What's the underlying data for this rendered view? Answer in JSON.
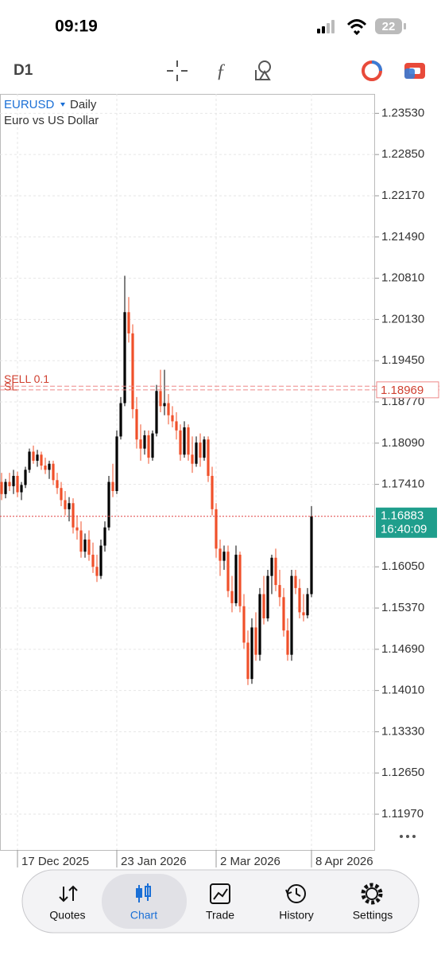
{
  "status_bar": {
    "time": "09:19",
    "battery": "22"
  },
  "toolbar": {
    "timeframe": "D1"
  },
  "nav": {
    "items": [
      "Quotes",
      "Chart",
      "Trade",
      "History",
      "Settings"
    ],
    "selected": 1
  },
  "chart_data": {
    "type": "candlestick",
    "symbol": "EURUSD",
    "period": "Daily",
    "description": "Euro vs US Dollar",
    "bull_color": "#000000",
    "bear_color": "#f0502a",
    "ylim": [
      1.1138,
      1.2385
    ],
    "yticks": [
      {
        "value": 1.2353,
        "label": "1.23530"
      },
      {
        "value": 1.2285,
        "label": "1.22850"
      },
      {
        "value": 1.2217,
        "label": "1.22170"
      },
      {
        "value": 1.2149,
        "label": "1.21490"
      },
      {
        "value": 1.2081,
        "label": "1.20810"
      },
      {
        "value": 1.2013,
        "label": "1.20130"
      },
      {
        "value": 1.1945,
        "label": "1.19450"
      },
      {
        "value": 1.1877,
        "label": "1.18770"
      },
      {
        "value": 1.1809,
        "label": "1.18090"
      },
      {
        "value": 1.1741,
        "label": "1.17410"
      },
      {
        "value": 1.1605,
        "label": "1.16050"
      },
      {
        "value": 1.1537,
        "label": "1.15370"
      },
      {
        "value": 1.1469,
        "label": "1.14690"
      },
      {
        "value": 1.1401,
        "label": "1.14010"
      },
      {
        "value": 1.1333,
        "label": "1.13330"
      },
      {
        "value": 1.1265,
        "label": "1.12650"
      },
      {
        "value": 1.1197,
        "label": "1.11970"
      }
    ],
    "grid": true,
    "categories": [
      null,
      null,
      null,
      null,
      "17 Dec 2025",
      null,
      null,
      null,
      null,
      null,
      null,
      null,
      null,
      null,
      null,
      null,
      null,
      null,
      null,
      null,
      null,
      null,
      null,
      null,
      null,
      null,
      null,
      null,
      null,
      "23 Jan 2026",
      null,
      null,
      null,
      null,
      null,
      null,
      null,
      null,
      null,
      null,
      null,
      null,
      null,
      null,
      null,
      null,
      null,
      null,
      null,
      null,
      null,
      null,
      null,
      null,
      "2 Mar 2026",
      null,
      null,
      null,
      null,
      null,
      null,
      null,
      null,
      null,
      null,
      null,
      null,
      null,
      null,
      null,
      null,
      null,
      null,
      null,
      null,
      null,
      null,
      null,
      "8 Apr 2026"
    ],
    "ohlc": [
      [
        1.1745,
        1.176,
        1.1715,
        1.1725
      ],
      [
        1.1725,
        1.175,
        1.1718,
        1.1745
      ],
      [
        1.1745,
        1.176,
        1.173,
        1.1738
      ],
      [
        1.1738,
        1.1765,
        1.1725,
        1.1755
      ],
      [
        1.1755,
        1.1762,
        1.172,
        1.1728
      ],
      [
        1.1728,
        1.1745,
        1.1715,
        1.174
      ],
      [
        1.174,
        1.177,
        1.1735,
        1.1765
      ],
      [
        1.1765,
        1.18,
        1.176,
        1.1795
      ],
      [
        1.1795,
        1.1805,
        1.1775,
        1.178
      ],
      [
        1.178,
        1.1798,
        1.177,
        1.179
      ],
      [
        1.179,
        1.1795,
        1.1765,
        1.1772
      ],
      [
        1.1772,
        1.1785,
        1.1758,
        1.1765
      ],
      [
        1.1765,
        1.178,
        1.175,
        1.1775
      ],
      [
        1.1775,
        1.178,
        1.174,
        1.1748
      ],
      [
        1.1748,
        1.176,
        1.1725,
        1.1735
      ],
      [
        1.1735,
        1.1745,
        1.1705,
        1.1715
      ],
      [
        1.1715,
        1.173,
        1.169,
        1.17
      ],
      [
        1.17,
        1.172,
        1.168,
        1.171
      ],
      [
        1.171,
        1.1718,
        1.166,
        1.167
      ],
      [
        1.167,
        1.169,
        1.165,
        1.1665
      ],
      [
        1.1665,
        1.168,
        1.162,
        1.163
      ],
      [
        1.163,
        1.166,
        1.162,
        1.165
      ],
      [
        1.165,
        1.1665,
        1.1615,
        1.1625
      ],
      [
        1.1625,
        1.1645,
        1.1595,
        1.1605
      ],
      [
        1.1605,
        1.1625,
        1.158,
        1.159
      ],
      [
        1.159,
        1.165,
        1.1585,
        1.164
      ],
      [
        1.164,
        1.168,
        1.163,
        1.167
      ],
      [
        1.167,
        1.1755,
        1.1665,
        1.1745
      ],
      [
        1.1745,
        1.1775,
        1.172,
        1.173
      ],
      [
        1.173,
        1.183,
        1.1725,
        1.182
      ],
      [
        1.182,
        1.1885,
        1.1815,
        1.1875
      ],
      [
        1.1875,
        1.2085,
        1.187,
        1.2025
      ],
      [
        1.2025,
        1.205,
        1.1975,
        1.199
      ],
      [
        1.199,
        1.2005,
        1.185,
        1.1865
      ],
      [
        1.1865,
        1.1885,
        1.18,
        1.1815
      ],
      [
        1.1815,
        1.184,
        1.178,
        1.18
      ],
      [
        1.18,
        1.183,
        1.179,
        1.1822
      ],
      [
        1.1822,
        1.183,
        1.1775,
        1.1785
      ],
      [
        1.1785,
        1.183,
        1.178,
        1.1825
      ],
      [
        1.1825,
        1.1905,
        1.182,
        1.1895
      ],
      [
        1.1895,
        1.193,
        1.186,
        1.187
      ],
      [
        1.187,
        1.193,
        1.1855,
        1.1875
      ],
      [
        1.1875,
        1.189,
        1.184,
        1.1855
      ],
      [
        1.1855,
        1.187,
        1.1835,
        1.1845
      ],
      [
        1.1845,
        1.186,
        1.1815,
        1.183
      ],
      [
        1.183,
        1.184,
        1.178,
        1.179
      ],
      [
        1.179,
        1.1845,
        1.1785,
        1.1835
      ],
      [
        1.1835,
        1.184,
        1.178,
        1.179
      ],
      [
        1.179,
        1.182,
        1.176,
        1.1775
      ],
      [
        1.1775,
        1.182,
        1.177,
        1.181
      ],
      [
        1.181,
        1.1825,
        1.177,
        1.1785
      ],
      [
        1.1785,
        1.182,
        1.178,
        1.1815
      ],
      [
        1.1815,
        1.182,
        1.1745,
        1.1755
      ],
      [
        1.1755,
        1.177,
        1.169,
        1.17
      ],
      [
        1.17,
        1.171,
        1.162,
        1.1635
      ],
      [
        1.1635,
        1.165,
        1.159,
        1.1615
      ],
      [
        1.1615,
        1.164,
        1.16,
        1.163
      ],
      [
        1.163,
        1.164,
        1.1555,
        1.1565
      ],
      [
        1.1565,
        1.159,
        1.153,
        1.1545
      ],
      [
        1.1545,
        1.164,
        1.154,
        1.1625
      ],
      [
        1.1625,
        1.163,
        1.153,
        1.154
      ],
      [
        1.154,
        1.156,
        1.147,
        1.148
      ],
      [
        1.148,
        1.15,
        1.141,
        1.142
      ],
      [
        1.142,
        1.152,
        1.1412,
        1.1505
      ],
      [
        1.1505,
        1.153,
        1.145,
        1.146
      ],
      [
        1.146,
        1.157,
        1.145,
        1.156
      ],
      [
        1.156,
        1.159,
        1.151,
        1.152
      ],
      [
        1.152,
        1.16,
        1.1515,
        1.159
      ],
      [
        1.159,
        1.1625,
        1.156,
        1.162
      ],
      [
        1.162,
        1.1635,
        1.1565,
        1.1575
      ],
      [
        1.1575,
        1.16,
        1.154,
        1.1555
      ],
      [
        1.1555,
        1.157,
        1.149,
        1.15
      ],
      [
        1.15,
        1.152,
        1.145,
        1.146
      ],
      [
        1.146,
        1.16,
        1.145,
        1.159
      ],
      [
        1.159,
        1.16,
        1.156,
        1.157
      ],
      [
        1.157,
        1.1585,
        1.152,
        1.153
      ],
      [
        1.153,
        1.156,
        1.1515,
        1.1525
      ],
      [
        1.1525,
        1.157,
        1.152,
        1.156
      ],
      [
        1.156,
        1.1705,
        1.1555,
        1.16883
      ]
    ],
    "current_price": {
      "value": 1.16883,
      "label": "1.16883"
    },
    "bar_timer": "16:40:09",
    "order": {
      "label": "SELL 0.1",
      "price": 1.1903
    },
    "stop_loss": {
      "text": "SL",
      "value": 1.18969,
      "label": "1.18969"
    }
  }
}
